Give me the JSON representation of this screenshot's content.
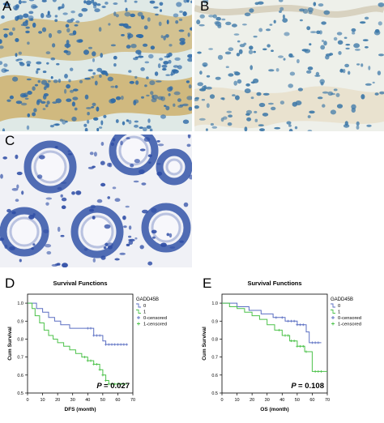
{
  "panels": {
    "a": {
      "letter": "A"
    },
    "b": {
      "letter": "B"
    },
    "c": {
      "letter": "C"
    },
    "d": {
      "letter": "D"
    },
    "e": {
      "letter": "E"
    }
  },
  "colors": {
    "group_0": "#5b6fc2",
    "group_1": "#4cc24a",
    "stain_brown": "#c79a3a",
    "nuclei_blue": "#2e6aa8"
  },
  "chart_data": [
    {
      "type": "line",
      "title": "Survival Functions",
      "xlabel": "DFS (month)",
      "ylabel": "Cum Survival",
      "xlim": [
        0,
        70
      ],
      "ylim": [
        0.5,
        1.05
      ],
      "xticks": [
        "0",
        "10",
        "20",
        "30",
        "40",
        "50",
        "60",
        "70"
      ],
      "yticks": [
        "0.5",
        "0.6",
        "0.7",
        "0.8",
        "0.9",
        "1.0"
      ],
      "legend_title": "GADD45B",
      "legend": [
        "0",
        "1",
        "0-censored",
        "1-censored"
      ],
      "legend_position": "right",
      "annotation": {
        "p_label": "P",
        "p_value": "= 0.027"
      },
      "series": [
        {
          "name": "0",
          "steps": [
            [
              0,
              1.0
            ],
            [
              6,
              0.97
            ],
            [
              10,
              0.95
            ],
            [
              14,
              0.92
            ],
            [
              18,
              0.9
            ],
            [
              22,
              0.88
            ],
            [
              28,
              0.86
            ],
            [
              36,
              0.86
            ],
            [
              44,
              0.82
            ],
            [
              50,
              0.79
            ],
            [
              52,
              0.77
            ],
            [
              66,
              0.77
            ]
          ],
          "censored_x": [
            40,
            42,
            44,
            46,
            48,
            52,
            54,
            56,
            58,
            60,
            62,
            64,
            66
          ]
        },
        {
          "name": "1",
          "steps": [
            [
              0,
              1.0
            ],
            [
              3,
              0.97
            ],
            [
              5,
              0.93
            ],
            [
              8,
              0.89
            ],
            [
              11,
              0.85
            ],
            [
              14,
              0.82
            ],
            [
              17,
              0.8
            ],
            [
              20,
              0.78
            ],
            [
              24,
              0.76
            ],
            [
              28,
              0.74
            ],
            [
              32,
              0.72
            ],
            [
              36,
              0.7
            ],
            [
              40,
              0.68
            ],
            [
              44,
              0.66
            ],
            [
              48,
              0.63
            ],
            [
              50,
              0.6
            ],
            [
              52,
              0.57
            ],
            [
              54,
              0.55
            ],
            [
              66,
              0.55
            ]
          ],
          "censored_x": [
            38,
            40,
            42,
            44,
            46,
            48,
            50,
            52,
            54,
            56,
            58,
            60,
            62,
            64
          ]
        }
      ]
    },
    {
      "type": "line",
      "title": "Survival Functions",
      "xlabel": "OS (month)",
      "ylabel": "Cum Survival",
      "xlim": [
        0,
        70
      ],
      "ylim": [
        0.5,
        1.05
      ],
      "xticks": [
        "0",
        "10",
        "20",
        "30",
        "40",
        "50",
        "60",
        "70"
      ],
      "yticks": [
        "0.5",
        "0.6",
        "0.7",
        "0.8",
        "0.9",
        "1.0"
      ],
      "legend_title": "GADD45B",
      "legend": [
        "0",
        "1",
        "0-censored",
        "1-censored"
      ],
      "legend_position": "right",
      "annotation": {
        "p_label": "P",
        "p_value": "= 0.108"
      },
      "series": [
        {
          "name": "0",
          "steps": [
            [
              0,
              1.0
            ],
            [
              10,
              0.98
            ],
            [
              18,
              0.96
            ],
            [
              26,
              0.94
            ],
            [
              34,
              0.92
            ],
            [
              42,
              0.9
            ],
            [
              50,
              0.88
            ],
            [
              56,
              0.84
            ],
            [
              58,
              0.78
            ],
            [
              66,
              0.78
            ]
          ],
          "censored_x": [
            36,
            40,
            44,
            46,
            48,
            50,
            52,
            54,
            60,
            62,
            64
          ]
        },
        {
          "name": "1",
          "steps": [
            [
              0,
              1.0
            ],
            [
              5,
              0.98
            ],
            [
              10,
              0.97
            ],
            [
              15,
              0.95
            ],
            [
              20,
              0.93
            ],
            [
              25,
              0.91
            ],
            [
              30,
              0.88
            ],
            [
              35,
              0.85
            ],
            [
              40,
              0.82
            ],
            [
              45,
              0.79
            ],
            [
              50,
              0.76
            ],
            [
              55,
              0.73
            ],
            [
              60,
              0.62
            ],
            [
              70,
              0.62
            ]
          ],
          "censored_x": [
            38,
            42,
            44,
            46,
            48,
            50,
            52,
            54,
            56,
            62,
            64,
            66
          ]
        }
      ]
    }
  ]
}
